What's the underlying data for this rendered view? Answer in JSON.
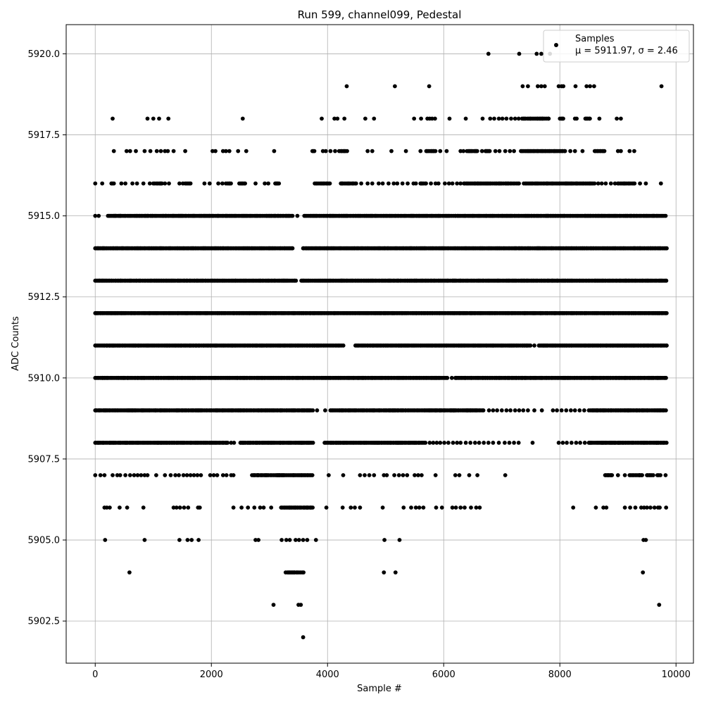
{
  "chart_data": {
    "type": "scatter",
    "title": "Run 599, channel099, Pedestal",
    "xlabel": "Sample #",
    "ylabel": "ADC Counts",
    "xlim": [
      -500,
      10300
    ],
    "ylim": [
      5901.2,
      5920.9
    ],
    "x_ticks": [
      0,
      2000,
      4000,
      6000,
      8000,
      10000
    ],
    "x_tick_labels": [
      "0",
      "2000",
      "4000",
      "6000",
      "8000",
      "10000"
    ],
    "y_ticks": [
      5902.5,
      5905.0,
      5907.5,
      5910.0,
      5912.5,
      5915.0,
      5917.5,
      5920.0
    ],
    "y_tick_labels": [
      "5902.5",
      "5905.0",
      "5907.5",
      "5910.0",
      "5912.5",
      "5915.0",
      "5917.5",
      "5920.0"
    ],
    "grid": true,
    "legend": {
      "placement": "top-right",
      "entries": [
        {
          "line1": "Samples",
          "line2": "μ = 5911.97, σ = 2.46"
        }
      ]
    },
    "marker_color": "#000000",
    "series": [
      {
        "name": "Samples",
        "levels": [
          {
            "y": 5920,
            "ranges": [],
            "points": [
              6770,
              7300,
              7600,
              7680,
              7830
            ]
          },
          {
            "y": 5919,
            "ranges": [],
            "points": [
              4330,
              5160,
              5750,
              7360,
              7450,
              7620,
              7680,
              7740,
              7980,
              8030,
              8060,
              8270,
              8460,
              8520,
              8590,
              9750
            ]
          },
          {
            "y": 5918,
            "ranges": [
              [
                7350,
                7820
              ],
              [
                8000,
                8070
              ],
              [
                8260,
                8290
              ],
              [
                8440,
                8520
              ]
            ],
            "points": [
              300,
              900,
              1000,
              1100,
              1260,
              2540,
              3900,
              4120,
              4170,
              4290,
              4650,
              4800,
              5490,
              5610,
              5720,
              5760,
              5800,
              5850,
              6100,
              6380,
              6670,
              6800,
              6870,
              6950,
              7010,
              7080,
              7160,
              7230,
              7290,
              8680,
              8980,
              9050
            ]
          },
          {
            "y": 5917,
            "ranges": [
              [
                3740,
                3780
              ],
              [
                4200,
                4350
              ],
              [
                5700,
                5870
              ],
              [
                6400,
                6600
              ],
              [
                6720,
                6800
              ],
              [
                7330,
                8100
              ],
              [
                8600,
                8770
              ]
            ],
            "points": [
              320,
              540,
              600,
              700,
              850,
              950,
              1060,
              1130,
              1200,
              1250,
              1350,
              1550,
              2020,
              2070,
              2200,
              2250,
              2310,
              2460,
              2600,
              3080,
              3920,
              3970,
              4050,
              4130,
              4690,
              4770,
              5100,
              5350,
              5600,
              5940,
              6050,
              6290,
              6340,
              6660,
              6890,
              6960,
              7060,
              7140,
              7210,
              8180,
              8260,
              8390,
              9000,
              9050,
              9200,
              9280
            ]
          },
          {
            "y": 5916,
            "ranges": [
              [
                280,
                340
              ],
              [
                1000,
                1150
              ],
              [
                1550,
                1650
              ],
              [
                2250,
                2350
              ],
              [
                2480,
                2580
              ],
              [
                3100,
                3180
              ],
              [
                3780,
                4050
              ],
              [
                4230,
                4500
              ],
              [
                5600,
                5700
              ],
              [
                6350,
                7300
              ],
              [
                7380,
                8600
              ],
              [
                9000,
                9300
              ]
            ],
            "points": [
              0,
              120,
              450,
              520,
              640,
              720,
              830,
              940,
              1200,
              1270,
              1450,
              1510,
              1880,
              1970,
              2120,
              2190,
              2760,
              2920,
              2980,
              4580,
              4690,
              4770,
              4880,
              4950,
              5050,
              5140,
              5200,
              5290,
              5380,
              5480,
              5520,
              5780,
              5860,
              5910,
              6020,
              6090,
              6150,
              6230,
              6290,
              8660,
              8720,
              8790,
              8880,
              8950,
              9380,
              9480,
              9740
            ]
          },
          {
            "y": 5915,
            "ranges": [
              [
                220,
                3400
              ],
              [
                3600,
                9840
              ]
            ],
            "points": [
              0,
              60,
              3480
            ]
          },
          {
            "y": 5914,
            "ranges": [
              [
                0,
                3400
              ],
              [
                3580,
                9840
              ]
            ],
            "points": []
          },
          {
            "y": 5913,
            "ranges": [
              [
                0,
                3470
              ],
              [
                3550,
                9840
              ]
            ],
            "points": []
          },
          {
            "y": 5912,
            "ranges": [
              [
                0,
                9840
              ]
            ],
            "points": []
          },
          {
            "y": 5911,
            "ranges": [
              [
                0,
                4280
              ],
              [
                4480,
                7500
              ],
              [
                7640,
                9840
              ]
            ],
            "points": [
              7560,
              7720,
              7780
            ]
          },
          {
            "y": 5910,
            "ranges": [
              [
                0,
                6080
              ],
              [
                6200,
                9840
              ]
            ],
            "points": [
              6140
            ]
          },
          {
            "y": 5909,
            "ranges": [
              [
                0,
                3750
              ],
              [
                4050,
                6700
              ],
              [
                8500,
                9840
              ]
            ],
            "points": [
              3820,
              3960,
              5860,
              5940,
              6020,
              6120,
              6180,
              6780,
              6850,
              6920,
              7000,
              7080,
              7150,
              7230,
              7300,
              7370,
              7450,
              7560,
              7690,
              7880,
              7950,
              8030,
              8110,
              8190,
              8260,
              8340,
              8420
            ]
          },
          {
            "y": 5908,
            "ranges": [
              [
                0,
                2300
              ],
              [
                2500,
                3750
              ],
              [
                3950,
                5700
              ],
              [
                8500,
                9840
              ]
            ],
            "points": [
              2340,
              2390,
              5760,
              5820,
              5880,
              5940,
              6010,
              6080,
              6160,
              6230,
              6290,
              6380,
              6460,
              6540,
              6610,
              6690,
              6770,
              6850,
              6950,
              7050,
              7130,
              7210,
              7290,
              7530,
              7980,
              8050,
              8120,
              8200,
              8280,
              8350,
              8430
            ]
          },
          {
            "y": 5907,
            "ranges": [
              [
                2700,
                3750
              ],
              [
                8780,
                8900
              ],
              [
                9200,
                9420
              ],
              [
                9500,
                9620
              ],
              [
                9680,
                9760
              ]
            ],
            "points": [
              0,
              90,
              160,
              300,
              380,
              430,
              520,
              600,
              670,
              730,
              790,
              850,
              900,
              1050,
              1200,
              1300,
              1380,
              1440,
              1520,
              1580,
              1640,
              1700,
              1760,
              1820,
              1980,
              2040,
              2100,
              2200,
              2260,
              2340,
              2380,
              4020,
              4270,
              4560,
              4640,
              4720,
              4800,
              4970,
              5020,
              5150,
              5230,
              5300,
              5370,
              5500,
              5560,
              5620,
              5860,
              6200,
              6270,
              6440,
              6580,
              7060,
              9000,
              9120,
              9820
            ]
          },
          {
            "y": 5906,
            "ranges": [
              [
                3200,
                3750
              ]
            ],
            "points": [
              160,
              200,
              250,
              420,
              550,
              830,
              1350,
              1400,
              1460,
              1530,
              1600,
              1770,
              1800,
              2380,
              2520,
              2630,
              2740,
              2840,
              2900,
              3030,
              3980,
              4260,
              4400,
              4470,
              4560,
              4950,
              5310,
              5440,
              5520,
              5580,
              5650,
              5870,
              5970,
              6150,
              6210,
              6290,
              6360,
              6470,
              6560,
              6620,
              8230,
              8620,
              8750,
              8800,
              9120,
              9210,
              9300,
              9400,
              9450,
              9500,
              9560,
              9630,
              9690,
              9720,
              9830
            ]
          },
          {
            "y": 5905,
            "ranges": [],
            "points": [
              170,
              850,
              1450,
              1590,
              1660,
              1780,
              2760,
              2810,
              3210,
              3290,
              3350,
              3450,
              3510,
              3580,
              3650,
              3800,
              4980,
              5240,
              9440,
              9480
            ]
          },
          {
            "y": 5904,
            "ranges": [
              [
                3280,
                3600
              ]
            ],
            "points": [
              590,
              4970,
              5170,
              9430
            ]
          },
          {
            "y": 5903,
            "ranges": [],
            "points": [
              3070,
              3500,
              3540,
              9710
            ]
          },
          {
            "y": 5902,
            "ranges": [],
            "points": [
              3580
            ]
          }
        ]
      }
    ]
  }
}
